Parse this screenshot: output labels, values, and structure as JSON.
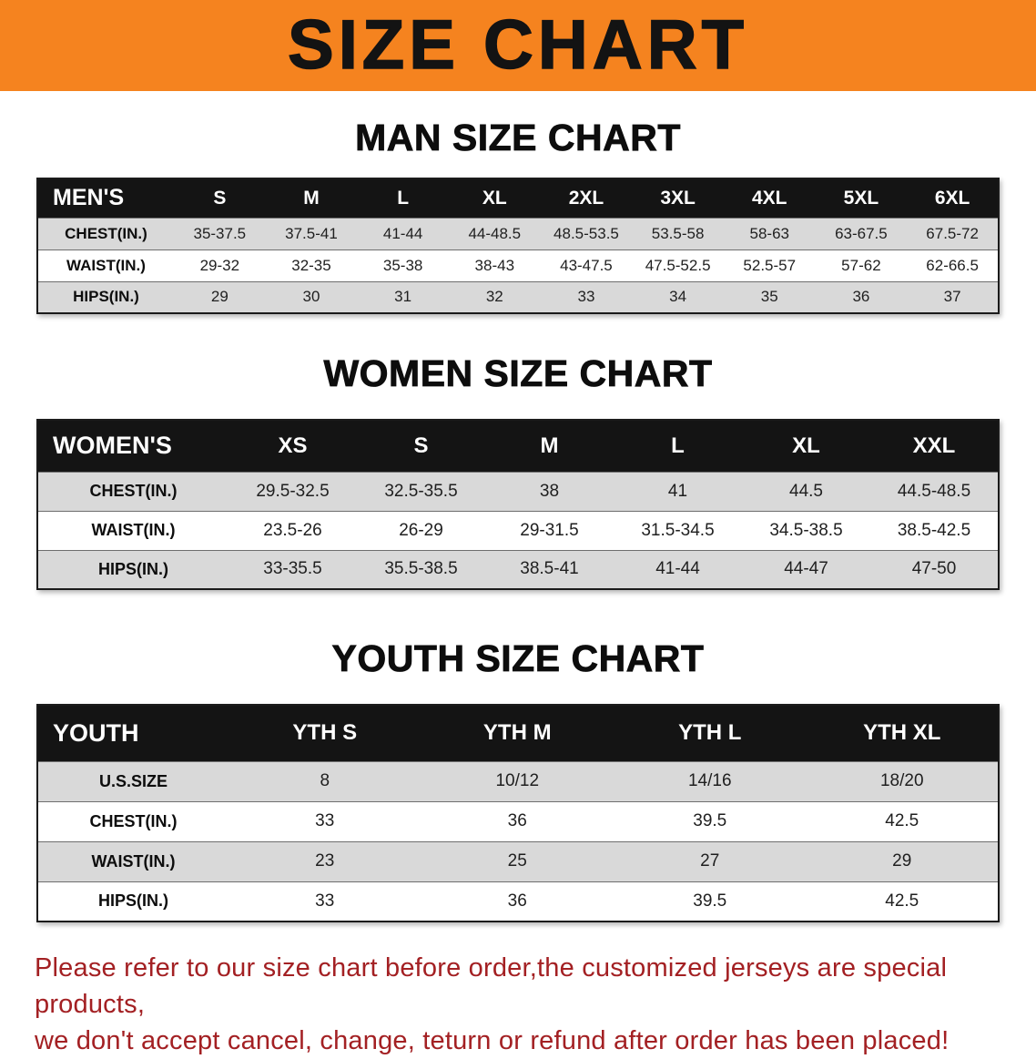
{
  "title_banner": {
    "text": "SIZE CHART"
  },
  "sections": [
    {
      "heading": "MAN SIZE CHART",
      "table": {
        "header": [
          "MEN'S",
          "S",
          "M",
          "L",
          "XL",
          "2XL",
          "3XL",
          "4XL",
          "5XL",
          "6XL"
        ],
        "rows": [
          [
            "CHEST(IN.)",
            "35-37.5",
            "37.5-41",
            "41-44",
            "44-48.5",
            "48.5-53.5",
            "53.5-58",
            "58-63",
            "63-67.5",
            "67.5-72"
          ],
          [
            "WAIST(IN.)",
            "29-32",
            "32-35",
            "35-38",
            "38-43",
            "43-47.5",
            "47.5-52.5",
            "52.5-57",
            "57-62",
            "62-66.5"
          ],
          [
            "HIPS(IN.)",
            "29",
            "30",
            "31",
            "32",
            "33",
            "34",
            "35",
            "36",
            "37"
          ]
        ]
      }
    },
    {
      "heading": "WOMEN SIZE CHART",
      "table": {
        "header": [
          "WOMEN'S",
          "XS",
          "S",
          "M",
          "L",
          "XL",
          "XXL"
        ],
        "rows": [
          [
            "CHEST(IN.)",
            "29.5-32.5",
            "32.5-35.5",
            "38",
            "41",
            "44.5",
            "44.5-48.5"
          ],
          [
            "WAIST(IN.)",
            "23.5-26",
            "26-29",
            "29-31.5",
            "31.5-34.5",
            "34.5-38.5",
            "38.5-42.5"
          ],
          [
            "HIPS(IN.)",
            "33-35.5",
            "35.5-38.5",
            "38.5-41",
            "41-44",
            "44-47",
            "47-50"
          ]
        ]
      }
    },
    {
      "heading": "YOUTH SIZE CHART",
      "table": {
        "header": [
          "YOUTH",
          "YTH S",
          "YTH M",
          "YTH L",
          "YTH XL"
        ],
        "rows": [
          [
            "U.S.SIZE",
            "8",
            "10/12",
            "14/16",
            "18/20"
          ],
          [
            "CHEST(IN.)",
            "33",
            "36",
            "39.5",
            "42.5"
          ],
          [
            "WAIST(IN.)",
            "23",
            "25",
            "27",
            "29"
          ],
          [
            "HIPS(IN.)",
            "33",
            "36",
            "39.5",
            "42.5"
          ]
        ]
      }
    }
  ],
  "disclaimer": {
    "line1": "Please refer to our size chart before order,the customized jerseys are special products,",
    "line2": "we don't accept cancel, change, teturn or refund after order has been placed!"
  },
  "colors": {
    "banner_bg": "#F5831F",
    "banner_text": "#131313",
    "table_header_bg": "#141414",
    "table_header_text": "#FFFFFF",
    "row_stripe": "#D9D9D9",
    "disclaimer_text": "#A32023"
  }
}
